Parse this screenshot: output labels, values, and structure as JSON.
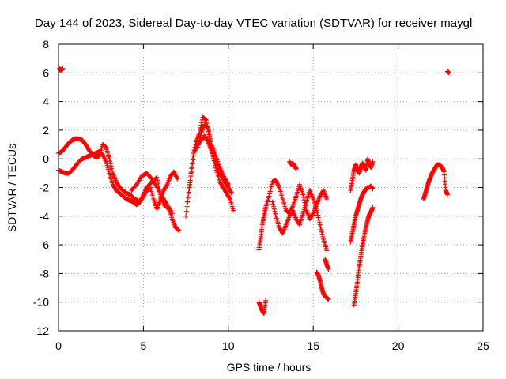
{
  "chart_data": {
    "type": "scatter",
    "title": "Day 144 of 2023, Sidereal Day-to-day VTEC variation (SDTVAR) for receiver maygl",
    "xlabel": "GPS time / hours",
    "ylabel": "SDTVAR / TECUs",
    "xlim": [
      0,
      25
    ],
    "ylim": [
      -12,
      8
    ],
    "xticks": [
      0,
      5,
      10,
      15,
      20,
      25
    ],
    "yticks": [
      -12,
      -10,
      -8,
      -6,
      -4,
      -2,
      0,
      2,
      4,
      6,
      8
    ],
    "grid": true,
    "marker": "+",
    "color": "#ff0000",
    "series": [
      {
        "name": "seg1",
        "x": [
          0.05,
          0.1,
          0.15,
          0.2,
          0.25
        ],
        "y": [
          6.3,
          6.2,
          6.25,
          6.2,
          6.3
        ]
      },
      {
        "name": "seg2",
        "x": [
          0.0,
          0.2,
          0.4,
          0.6,
          0.8,
          1.0,
          1.2,
          1.4,
          1.6,
          1.8,
          2.0,
          2.2,
          2.4,
          2.6,
          2.8,
          3.0,
          3.2,
          3.4,
          3.6,
          3.8,
          4.0,
          4.2,
          4.5,
          4.8,
          5.0,
          5.2,
          5.5,
          5.8,
          6.0,
          6.2,
          6.5,
          6.7,
          6.9,
          7.1
        ],
        "y": [
          0.4,
          0.5,
          0.8,
          1.1,
          1.3,
          1.4,
          1.4,
          1.3,
          1.0,
          0.6,
          0.3,
          0.1,
          0.2,
          1.0,
          0.8,
          0.0,
          -1.0,
          -1.6,
          -2.0,
          -2.2,
          -2.4,
          -2.5,
          -2.8,
          -3.0,
          -2.5,
          -2.0,
          -1.6,
          -1.3,
          -2.5,
          -3.2,
          -3.5,
          -4.2,
          -4.8,
          -5.0
        ]
      },
      {
        "name": "seg3",
        "x": [
          0.0,
          0.2,
          0.4,
          0.6,
          0.8,
          1.0,
          1.2,
          1.4,
          1.6,
          1.8,
          2.0,
          2.2,
          2.4,
          2.6,
          2.8,
          3.0,
          3.2,
          3.4,
          3.6,
          3.8,
          4.0,
          4.2,
          4.4,
          4.6,
          4.8,
          5.0,
          5.2,
          5.4,
          5.6,
          5.8,
          6.0,
          6.2,
          6.4,
          6.6,
          6.8,
          7.0
        ],
        "y": [
          -0.8,
          -0.9,
          -1.0,
          -1.0,
          -0.8,
          -0.5,
          -0.2,
          0.0,
          0.1,
          0.2,
          0.3,
          0.4,
          0.5,
          0.3,
          -0.2,
          -1.0,
          -1.8,
          -2.2,
          -2.4,
          -2.6,
          -2.8,
          -2.9,
          -3.0,
          -3.2,
          -3.0,
          -2.6,
          -2.2,
          -2.0,
          -2.8,
          -3.5,
          -2.8,
          -2.2,
          -1.8,
          -1.2,
          -0.9,
          -1.4
        ]
      },
      {
        "name": "seg4",
        "x": [
          4.3,
          4.6,
          4.9,
          5.2,
          5.5,
          5.8,
          6.1,
          6.4,
          6.7
        ],
        "y": [
          -2.2,
          -1.8,
          -1.2,
          -1.0,
          -1.4,
          -2.0,
          -2.6,
          -3.2,
          -3.8
        ]
      },
      {
        "name": "seg5",
        "x": [
          7.5,
          7.7,
          7.9,
          8.1,
          8.3,
          8.5,
          8.7,
          8.9,
          9.1,
          9.3,
          9.5,
          9.7,
          9.9,
          10.1,
          10.3
        ],
        "y": [
          -4.0,
          -2.0,
          0.0,
          1.2,
          1.8,
          2.9,
          2.7,
          1.5,
          0.2,
          -0.8,
          -1.6,
          -2.0,
          -2.4,
          -2.8,
          -3.6
        ]
      },
      {
        "name": "seg6",
        "x": [
          7.6,
          7.8,
          8.0,
          8.2,
          8.4,
          8.6,
          8.8,
          9.0,
          9.2,
          9.4,
          9.6,
          9.8,
          10.0,
          10.2
        ],
        "y": [
          -3.0,
          -1.2,
          0.5,
          1.0,
          1.3,
          1.6,
          1.2,
          0.6,
          -0.1,
          -0.8,
          -1.2,
          -1.6,
          -2.0,
          -2.4
        ]
      },
      {
        "name": "seg7",
        "x": [
          8.2,
          8.4,
          8.6,
          8.8,
          9.0,
          9.2,
          9.4,
          9.6,
          9.8,
          10.0
        ],
        "y": [
          0.8,
          1.8,
          2.4,
          2.2,
          1.0,
          0.4,
          -0.3,
          -0.9,
          -1.4,
          -1.8
        ]
      },
      {
        "name": "seg8",
        "x": [
          11.8,
          11.9,
          12.0,
          12.1,
          12.2
        ],
        "y": [
          -10.0,
          -10.3,
          -10.6,
          -10.8,
          -9.9
        ]
      },
      {
        "name": "seg9",
        "x": [
          11.8,
          11.9,
          12.0,
          12.1,
          12.2,
          12.4,
          12.6,
          12.8,
          13.0,
          13.2,
          13.4,
          13.6,
          13.8,
          14.0,
          14.2,
          14.4,
          14.6,
          14.8,
          15.0,
          15.2,
          15.4,
          15.6,
          15.8
        ],
        "y": [
          -6.3,
          -5.6,
          -4.6,
          -4.0,
          -3.4,
          -2.6,
          -1.6,
          -1.5,
          -2.0,
          -2.8,
          -3.6,
          -3.8,
          -3.3,
          -2.6,
          -1.8,
          -2.5,
          -3.6,
          -4.2,
          -3.8,
          -3.2,
          -2.6,
          -2.2,
          -2.8
        ]
      },
      {
        "name": "seg10",
        "x": [
          12.6,
          12.8,
          13.0,
          13.2,
          13.4,
          13.6,
          13.8,
          14.0,
          14.2,
          14.4,
          14.6,
          14.8,
          15.0,
          15.2,
          15.4,
          15.6,
          15.8
        ],
        "y": [
          -3.0,
          -4.0,
          -4.8,
          -5.2,
          -4.6,
          -4.0,
          -3.6,
          -4.2,
          -4.6,
          -3.8,
          -3.0,
          -2.2,
          -2.8,
          -3.6,
          -4.6,
          -5.6,
          -6.4
        ]
      },
      {
        "name": "seg11",
        "x": [
          13.6,
          13.7,
          13.8,
          13.9,
          14.0
        ],
        "y": [
          -0.2,
          -0.4,
          -0.3,
          -0.5,
          -0.7
        ]
      },
      {
        "name": "seg12",
        "x": [
          15.2,
          15.3,
          15.4,
          15.5,
          15.6,
          15.7,
          15.8,
          15.9
        ],
        "y": [
          -7.9,
          -8.1,
          -8.5,
          -9.0,
          -9.4,
          -9.6,
          -9.7,
          -9.8
        ]
      },
      {
        "name": "seg13",
        "x": [
          15.7,
          15.8,
          15.9
        ],
        "y": [
          -7.0,
          -7.4,
          -7.7
        ]
      },
      {
        "name": "seg14",
        "x": [
          17.2,
          17.3,
          17.4,
          17.5,
          17.6,
          17.7,
          17.8,
          17.9,
          18.0,
          18.1,
          18.2,
          18.3,
          18.4,
          18.5
        ],
        "y": [
          -2.2,
          -1.5,
          -0.8,
          -0.4,
          -0.8,
          -1.0,
          -0.6,
          -0.3,
          -0.5,
          -0.8,
          0.0,
          -0.4,
          -0.6,
          -0.2
        ]
      },
      {
        "name": "seg15",
        "x": [
          17.2,
          17.3,
          17.4,
          17.5,
          17.6,
          17.7,
          17.8,
          17.9,
          18.0,
          18.1,
          18.2,
          18.3,
          18.4,
          18.5
        ],
        "y": [
          -5.8,
          -5.2,
          -4.6,
          -4.0,
          -3.6,
          -3.2,
          -2.8,
          -2.5,
          -2.3,
          -2.1,
          -2.0,
          -2.0,
          -1.9,
          -2.1
        ]
      },
      {
        "name": "seg16",
        "x": [
          17.4,
          17.5,
          17.6,
          17.7,
          17.8,
          17.9,
          18.0,
          18.1,
          18.2,
          18.3,
          18.4,
          18.5
        ],
        "y": [
          -10.2,
          -9.4,
          -8.6,
          -7.6,
          -6.8,
          -6.0,
          -5.4,
          -4.8,
          -4.3,
          -3.9,
          -3.7,
          -3.4
        ]
      },
      {
        "name": "seg17",
        "x": [
          21.5,
          21.6,
          21.7,
          21.8,
          21.9,
          22.0,
          22.1,
          22.2,
          22.3,
          22.4,
          22.5,
          22.6,
          22.7,
          22.8,
          22.9
        ],
        "y": [
          -2.8,
          -2.4,
          -2.0,
          -1.6,
          -1.3,
          -1.0,
          -0.8,
          -0.6,
          -0.4,
          -0.4,
          -0.5,
          -0.6,
          -0.9,
          -2.2,
          -2.5
        ]
      },
      {
        "name": "seg18",
        "x": [
          22.9,
          23.0
        ],
        "y": [
          6.1,
          6.0
        ]
      }
    ]
  }
}
